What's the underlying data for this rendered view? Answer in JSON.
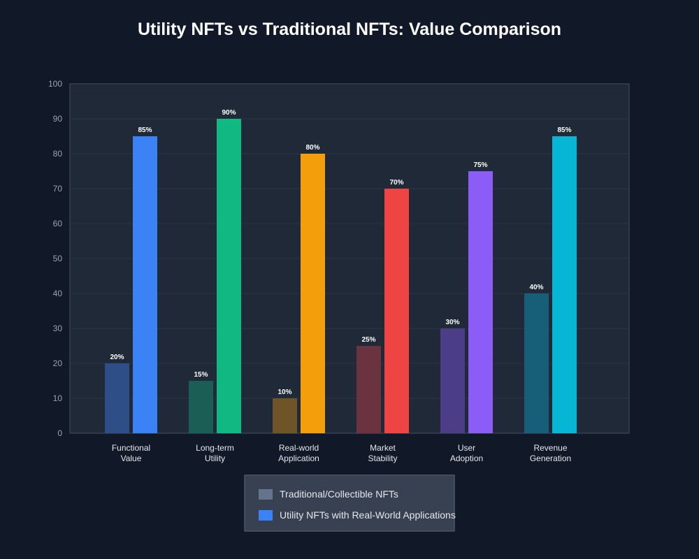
{
  "chart_data": {
    "type": "bar",
    "title": "Utility NFTs vs Traditional NFTs: Value Comparison",
    "xlabel": "",
    "ylabel": "",
    "ylim": [
      0,
      100
    ],
    "yticks": [
      0,
      10,
      20,
      30,
      40,
      50,
      60,
      70,
      80,
      90,
      100
    ],
    "grid": true,
    "legend_position": "bottom-center",
    "categories": [
      [
        "Functional",
        "Value"
      ],
      [
        "Long-term",
        "Utility"
      ],
      [
        "Real-world",
        "Application"
      ],
      [
        "Market",
        "Stability"
      ],
      [
        "User",
        "Adoption"
      ],
      [
        "Revenue",
        "Generation"
      ]
    ],
    "series": [
      {
        "name": "Traditional/Collectible NFTs",
        "values": [
          20,
          15,
          10,
          25,
          30,
          40
        ],
        "labels": [
          "20%",
          "15%",
          "10%",
          "25%",
          "30%",
          "40%"
        ],
        "colors": [
          "#2d4e87",
          "#1b5e56",
          "#6f5427",
          "#6b3340",
          "#4b3d86",
          "#175e79"
        ],
        "legend_color": "#64748b"
      },
      {
        "name": "Utility NFTs with Real-World Applications",
        "values": [
          85,
          90,
          80,
          70,
          75,
          85
        ],
        "labels": [
          "85%",
          "90%",
          "80%",
          "70%",
          "75%",
          "85%"
        ],
        "colors": [
          "#3b82f6",
          "#10b981",
          "#f59e0b",
          "#ef4444",
          "#8b5cf6",
          "#06b6d4"
        ],
        "legend_color": "#3b82f6"
      }
    ]
  }
}
